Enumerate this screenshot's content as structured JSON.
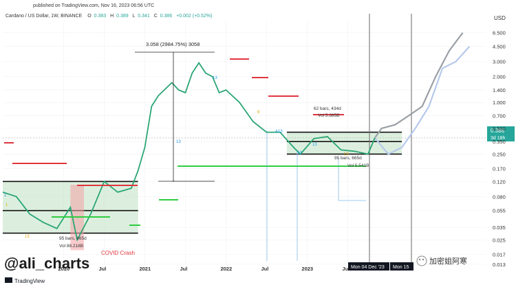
{
  "header": {
    "published": "published on TradingView.com, Nov 16, 2023 06:56 UTC",
    "symbol": "Cardano / US Dollar, 1W, BINANCE",
    "o_label": "O",
    "o_value": "0.383",
    "h_label": "H",
    "h_value": "0.389",
    "l_label": "L",
    "l_value": "0.341",
    "c_label": "C",
    "c_value": "0.386",
    "change": "+0.002 (+0.52%)"
  },
  "chart_data": {
    "type": "line",
    "y_scale": "log",
    "currency_label": "USD",
    "y_ticks": [
      "6.500",
      "4.500",
      "3.000",
      "2.000",
      "1.400",
      "1.000",
      "0.700",
      "0.500",
      "0.350",
      "0.250",
      "0.170",
      "0.120",
      "0.080",
      "0.055",
      "0.035",
      "0.025",
      "0.017",
      "0.013"
    ],
    "y_tick_values": [
      6.5,
      4.5,
      3.0,
      2.0,
      1.4,
      1.0,
      0.7,
      0.5,
      0.35,
      0.25,
      0.17,
      0.12,
      0.08,
      0.055,
      0.035,
      0.025,
      0.017,
      0.013
    ],
    "x_ticks": [
      "2020",
      "Jul",
      "2021",
      "Jul",
      "2022",
      "Jul",
      "2023",
      "Jul"
    ],
    "x_tick_dates": [
      "2020-01",
      "2020-07",
      "2021-01",
      "2021-07",
      "2022-01",
      "2022-07",
      "2023-01",
      "2023-07"
    ],
    "price_badge": {
      "value": "0.386",
      "countdown": "3d 18h"
    },
    "crosshair_labels": [
      "Mon 04 Dec '23",
      "Mon 15"
    ],
    "annotations": {
      "measure_top": "3.058 (2984.75%) 3058",
      "range_2020_bars": "95 bars, 665d",
      "range_2020_vol": "Vol 88.218B",
      "range_2023_bars": "62 bars, 434d",
      "range_2023_vol": "Vol 5.385B",
      "range_2023_bars_b": "95 bars, 665d",
      "range_2023_vol_b": "Vol 5.541B",
      "covid": "COVID Crash",
      "td_labels": [
        "1",
        "1",
        "13",
        "13",
        "9",
        "13",
        "13",
        "A13",
        "13",
        "13"
      ]
    },
    "price_series": [
      [
        "2019-04",
        0.09
      ],
      [
        "2019-06",
        0.08
      ],
      [
        "2019-08",
        0.05
      ],
      [
        "2019-10",
        0.04
      ],
      [
        "2019-12",
        0.034
      ],
      [
        "2020-02",
        0.06
      ],
      [
        "2020-03",
        0.025
      ],
      [
        "2020-05",
        0.05
      ],
      [
        "2020-07",
        0.12
      ],
      [
        "2020-09",
        0.09
      ],
      [
        "2020-11",
        0.1
      ],
      [
        "2020-12",
        0.16
      ],
      [
        "2021-01",
        0.3
      ],
      [
        "2021-02",
        0.9
      ],
      [
        "2021-03",
        1.2
      ],
      [
        "2021-05",
        1.7
      ],
      [
        "2021-06",
        1.4
      ],
      [
        "2021-07",
        1.3
      ],
      [
        "2021-08",
        2.2
      ],
      [
        "2021-09",
        2.9
      ],
      [
        "2021-10",
        2.2
      ],
      [
        "2021-11",
        2.0
      ],
      [
        "2021-12",
        1.3
      ],
      [
        "2022-01",
        1.4
      ],
      [
        "2022-03",
        1.0
      ],
      [
        "2022-05",
        0.6
      ],
      [
        "2022-07",
        0.45
      ],
      [
        "2022-09",
        0.45
      ],
      [
        "2022-11",
        0.3
      ],
      [
        "2022-12",
        0.25
      ],
      [
        "2023-02",
        0.38
      ],
      [
        "2023-04",
        0.4
      ],
      [
        "2023-06",
        0.28
      ],
      [
        "2023-08",
        0.27
      ],
      [
        "2023-10",
        0.25
      ],
      [
        "2023-11",
        0.386
      ]
    ],
    "projection_dark": [
      [
        "2023-11",
        0.386
      ],
      [
        "2023-12",
        0.5
      ],
      [
        "2024-02",
        0.55
      ],
      [
        "2024-04",
        0.7
      ],
      [
        "2024-06",
        0.9
      ],
      [
        "2024-08",
        2.0
      ],
      [
        "2024-10",
        4.0
      ],
      [
        "2024-12",
        6.5
      ]
    ],
    "projection_light": [
      [
        "2023-11",
        0.386
      ],
      [
        "2024-01",
        0.25
      ],
      [
        "2024-03",
        0.3
      ],
      [
        "2024-05",
        0.5
      ],
      [
        "2024-07",
        0.9
      ],
      [
        "2024-09",
        2.5
      ],
      [
        "2024-11",
        3.0
      ],
      [
        "2025-01",
        4.5
      ]
    ],
    "ranges": [
      {
        "from": "2019-04",
        "to": "2020-12",
        "top": 0.12,
        "mid": 0.055,
        "bottom": 0.03
      },
      {
        "from": "2022-10",
        "to": "2024-03",
        "top": 0.45,
        "mid": 0.35,
        "bottom": 0.25
      }
    ],
    "xlabel": "",
    "ylabel": ""
  },
  "watermark": "@ali_charts",
  "footer_brand": "TradingView",
  "wechat_handle": "加密姐阿寒"
}
